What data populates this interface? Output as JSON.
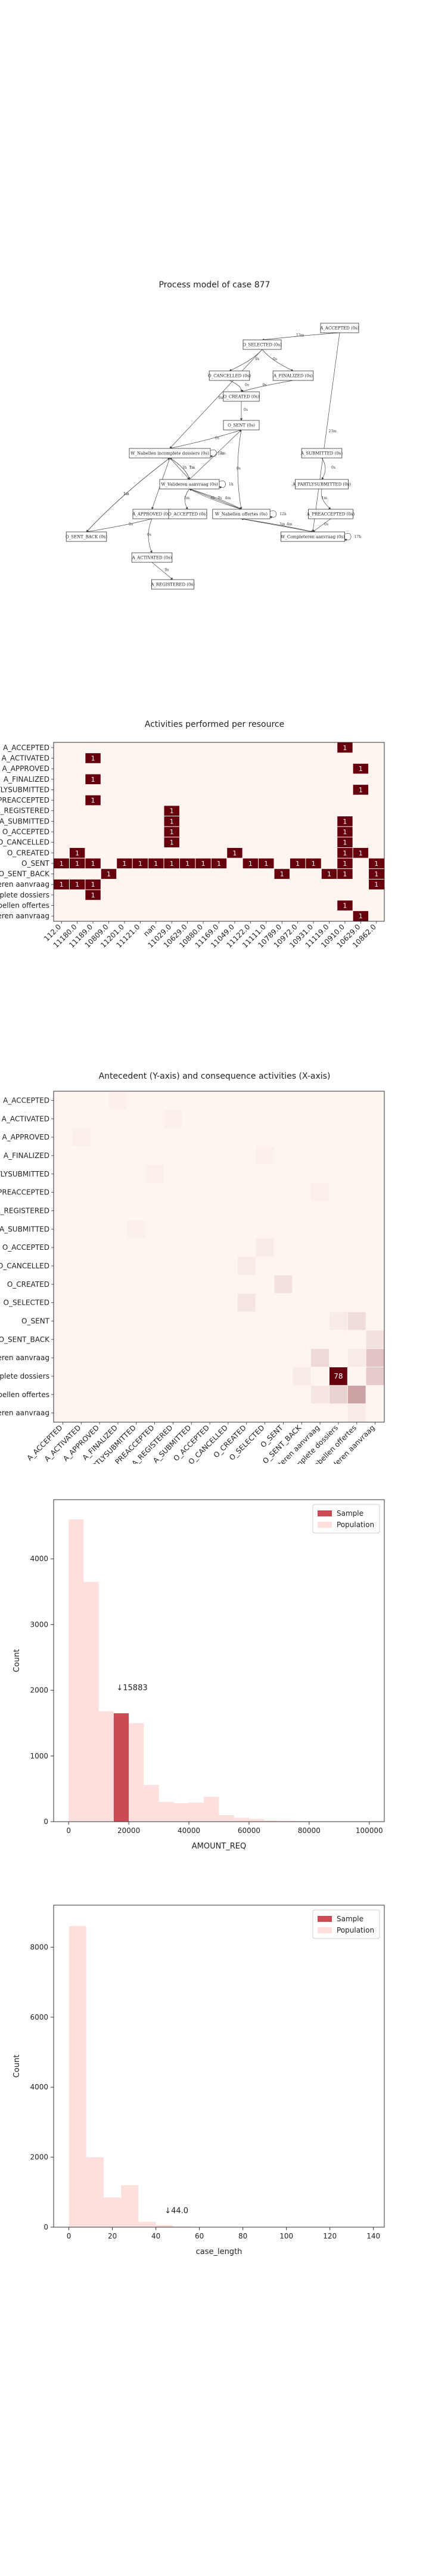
{
  "process_model": {
    "title": "Process model of case 877",
    "nodes": [
      {
        "id": "a_accepted",
        "label": "A_ACCEPTED (0s)"
      },
      {
        "id": "o_selected",
        "label": "O_SELECTED (0s)"
      },
      {
        "id": "o_cancelled",
        "label": "O_CANCELLED (0s)"
      },
      {
        "id": "a_finalized",
        "label": "A_FINALIZED (0s)"
      },
      {
        "id": "o_created",
        "label": "O_CREATED (0s)"
      },
      {
        "id": "o_sent",
        "label": "O_SENT (0s)"
      },
      {
        "id": "w_nabellen_inc",
        "label": "W_Nabellen incomplete dossiers (0s)"
      },
      {
        "id": "a_submitted",
        "label": "A_SUBMITTED (0s)"
      },
      {
        "id": "w_valideren",
        "label": "W_Valideren aanvraag (0s)"
      },
      {
        "id": "a_partlysubmitted",
        "label": "A_PARTLYSUBMITTED (0s)"
      },
      {
        "id": "a_approved",
        "label": "A_APPROVED (0s)"
      },
      {
        "id": "o_accepted",
        "label": "O_ACCEPTED (0s)"
      },
      {
        "id": "w_nabellen_off",
        "label": "W_Nabellen offertes (0s)"
      },
      {
        "id": "a_preaccepted",
        "label": "A_PREACCEPTED (0s)"
      },
      {
        "id": "o_sent_back",
        "label": "O_SENT_BACK (0s)"
      },
      {
        "id": "w_completeren",
        "label": "W_Completeren aanvraag (0s)"
      },
      {
        "id": "a_activated",
        "label": "A_ACTIVATED (0s)"
      },
      {
        "id": "a_registered",
        "label": "A_REGISTERED (0s)"
      }
    ],
    "edges": [
      {
        "from": "a_accepted",
        "to": "o_selected",
        "label": "13m"
      },
      {
        "from": "a_accepted",
        "to": "w_completeren",
        "label": "23m"
      },
      {
        "from": "o_selected",
        "to": "o_cancelled",
        "label": "0s"
      },
      {
        "from": "o_selected",
        "to": "a_finalized",
        "label": "0s"
      },
      {
        "from": "o_selected",
        "to": "w_nabellen_inc",
        "label": "9m"
      },
      {
        "from": "o_cancelled",
        "to": "o_created",
        "label": "0s"
      },
      {
        "from": "a_finalized",
        "to": "o_created",
        "label": "0s"
      },
      {
        "from": "o_created",
        "to": "o_sent",
        "label": "0s"
      },
      {
        "from": "o_sent",
        "to": "w_nabellen_inc",
        "label": "0s"
      },
      {
        "from": "o_sent",
        "to": "w_nabellen_off",
        "label": "0s"
      },
      {
        "from": "w_nabellen_inc",
        "to": "w_valideren",
        "label": "3h"
      },
      {
        "from": "w_nabellen_inc",
        "to": "w_valideren",
        "label": "7m"
      },
      {
        "from": "w_nabellen_inc",
        "to": "o_sent_back",
        "label": "1m"
      },
      {
        "from": "w_nabellen_inc",
        "to": "a_approved",
        "label": "0s"
      },
      {
        "from": "w_valideren",
        "to": "w_nabellen_off",
        "label": "4m"
      },
      {
        "from": "w_valideren",
        "to": "o_accepted",
        "label": "1m"
      },
      {
        "from": "w_valideren",
        "to": "w_nabellen_off",
        "label": "0s"
      },
      {
        "from": "a_submitted",
        "to": "a_partlysubmitted",
        "label": "0s"
      },
      {
        "from": "a_partlysubmitted",
        "to": "a_preaccepted",
        "label": "1m"
      },
      {
        "from": "a_preaccepted",
        "to": "w_completeren",
        "label": "0s"
      },
      {
        "from": "a_approved",
        "to": "o_sent_back",
        "label": "0s"
      },
      {
        "from": "a_approved",
        "to": "a_activated",
        "label": "0s"
      },
      {
        "from": "w_nabellen_off",
        "to": "w_completeren",
        "label": "3m"
      },
      {
        "from": "w_nabellen_off",
        "to": "w_nabellen_off",
        "label": "12h"
      },
      {
        "from": "w_nabellen_off",
        "to": "w_valideren",
        "label": "6h"
      },
      {
        "from": "w_completeren",
        "to": "w_completeren",
        "label": "17h"
      },
      {
        "from": "w_completeren",
        "to": "w_nabellen_off",
        "label": "4m"
      },
      {
        "from": "o_sent_back",
        "to": "w_nabellen_inc",
        "label": "1m"
      },
      {
        "from": "a_activated",
        "to": "a_registered",
        "label": "0s"
      },
      {
        "from": "w_nabellen_inc",
        "to": "w_nabellen_inc",
        "label": "7m"
      },
      {
        "from": "w_valideren",
        "to": "w_valideren",
        "label": "1h"
      },
      {
        "from": "w_valideren",
        "to": "o_sent",
        "label": "1m"
      },
      {
        "from": "w_valideren",
        "to": "w_nabellen_inc",
        "label": "1m"
      }
    ]
  },
  "chart_data": [
    {
      "type": "heatmap",
      "title": "Activities performed per resource",
      "rows": [
        "A_ACCEPTED",
        "A_ACTIVATED",
        "A_APPROVED",
        "A_FINALIZED",
        "A_PARTLYSUBMITTED",
        "A_PREACCEPTED",
        "A_REGISTERED",
        "A_SUBMITTED",
        "O_ACCEPTED",
        "O_CANCELLED",
        "O_CREATED",
        "O_SENT",
        "O_SENT_BACK",
        "W_Completeren aanvraag",
        "W_Nabellen incomplete dossiers",
        "W_Nabellen offertes",
        "W_Valideren aanvraag"
      ],
      "cols": [
        "112.0",
        "11180.0",
        "11189.0",
        "10809.0",
        "11201.0",
        "11121.0",
        "nan",
        "11029.0",
        "10629.0",
        "10880.0",
        "11169.0",
        "11049.0",
        "11122.0",
        "11111.0",
        "10789.0",
        "10972.0",
        "10931.0",
        "11119.0",
        "10910.0",
        "10629.0",
        "10862.0"
      ],
      "cells": [
        {
          "r": 0,
          "c": 18,
          "v": 1
        },
        {
          "r": 1,
          "c": 2,
          "v": 1
        },
        {
          "r": 2,
          "c": 19,
          "v": 1
        },
        {
          "r": 3,
          "c": 2,
          "v": 1
        },
        {
          "r": 4,
          "c": 19,
          "v": 1
        },
        {
          "r": 5,
          "c": 2,
          "v": 1
        },
        {
          "r": 6,
          "c": 7,
          "v": 1
        },
        {
          "r": 7,
          "c": 7,
          "v": 1
        },
        {
          "r": 7,
          "c": 18,
          "v": 1
        },
        {
          "r": 8,
          "c": 7,
          "v": 1
        },
        {
          "r": 8,
          "c": 18,
          "v": 1
        },
        {
          "r": 9,
          "c": 7,
          "v": 1
        },
        {
          "r": 9,
          "c": 18,
          "v": 1
        },
        {
          "r": 10,
          "c": 1,
          "v": 1
        },
        {
          "r": 10,
          "c": 11,
          "v": 1
        },
        {
          "r": 10,
          "c": 18,
          "v": 1
        },
        {
          "r": 10,
          "c": 19,
          "v": 1
        },
        {
          "r": 11,
          "c": 0,
          "v": 1
        },
        {
          "r": 11,
          "c": 1,
          "v": 1
        },
        {
          "r": 11,
          "c": 2,
          "v": 1
        },
        {
          "r": 11,
          "c": 4,
          "v": 1
        },
        {
          "r": 11,
          "c": 5,
          "v": 1
        },
        {
          "r": 11,
          "c": 6,
          "v": 1
        },
        {
          "r": 11,
          "c": 7,
          "v": 1
        },
        {
          "r": 11,
          "c": 8,
          "v": 1
        },
        {
          "r": 11,
          "c": 9,
          "v": 1
        },
        {
          "r": 11,
          "c": 10,
          "v": 1
        },
        {
          "r": 11,
          "c": 12,
          "v": 1
        },
        {
          "r": 11,
          "c": 13,
          "v": 1
        },
        {
          "r": 11,
          "c": 15,
          "v": 1
        },
        {
          "r": 11,
          "c": 16,
          "v": 1
        },
        {
          "r": 11,
          "c": 18,
          "v": 1
        },
        {
          "r": 11,
          "c": 20,
          "v": 1
        },
        {
          "r": 12,
          "c": 3,
          "v": 1
        },
        {
          "r": 12,
          "c": 14,
          "v": 1
        },
        {
          "r": 12,
          "c": 17,
          "v": 1
        },
        {
          "r": 12,
          "c": 18,
          "v": 1
        },
        {
          "r": 12,
          "c": 20,
          "v": 1
        },
        {
          "r": 13,
          "c": 0,
          "v": 1
        },
        {
          "r": 13,
          "c": 1,
          "v": 1
        },
        {
          "r": 13,
          "c": 2,
          "v": 1
        },
        {
          "r": 13,
          "c": 20,
          "v": 1
        },
        {
          "r": 14,
          "c": 2,
          "v": 1
        },
        {
          "r": 15,
          "c": 18,
          "v": 1
        },
        {
          "r": 16,
          "c": 19,
          "v": 1
        }
      ],
      "color_low": "#fff5f0",
      "color_high": "#67000d"
    },
    {
      "type": "heatmap",
      "title": "Antecedent (Y-axis) and consequence activities (X-axis)",
      "rows": [
        "A_ACCEPTED",
        "A_ACTIVATED",
        "A_APPROVED",
        "A_FINALIZED",
        "A_PARTLYSUBMITTED",
        "A_PREACCEPTED",
        "A_REGISTERED",
        "A_SUBMITTED",
        "O_ACCEPTED",
        "O_CANCELLED",
        "O_CREATED",
        "O_SELECTED",
        "O_SENT",
        "O_SENT_BACK",
        "W_Completeren aanvraag",
        "W_Nabellen incomplete dossiers",
        "W_Nabellen offertes",
        "W_Valideren aanvraag"
      ],
      "cols": [
        "A_ACCEPTED",
        "A_ACTIVATED",
        "A_APPROVED",
        "A_FINALIZED",
        "A_PARTLYSUBMITTED",
        "A_PREACCEPTED",
        "A_REGISTERED",
        "A_SUBMITTED",
        "O_ACCEPTED",
        "O_CANCELLED",
        "O_CREATED",
        "O_SELECTED",
        "O_SENT",
        "O_SENT_BACK",
        "W_Completeren aanvraag",
        "W_Nabellen incomplete dossiers",
        "W_Nabellen offertes",
        "W_Valideren aanvraag"
      ],
      "cells": [
        {
          "r": 15,
          "c": 15,
          "v": 78,
          "label": "78"
        },
        {
          "r": 16,
          "c": 16,
          "v": 22
        },
        {
          "r": 14,
          "c": 17,
          "v": 12
        },
        {
          "r": 15,
          "c": 17,
          "v": 10
        },
        {
          "r": 16,
          "c": 15,
          "v": 8
        },
        {
          "r": 14,
          "c": 14,
          "v": 6
        },
        {
          "r": 12,
          "c": 16,
          "v": 5
        },
        {
          "r": 13,
          "c": 17,
          "v": 4
        },
        {
          "r": 10,
          "c": 12,
          "v": 4
        },
        {
          "r": 11,
          "c": 10,
          "v": 3
        },
        {
          "r": 16,
          "c": 14,
          "v": 3
        },
        {
          "r": 15,
          "c": 13,
          "v": 2
        },
        {
          "r": 8,
          "c": 11,
          "v": 2
        },
        {
          "r": 9,
          "c": 10,
          "v": 2
        },
        {
          "r": 17,
          "c": 16,
          "v": 2
        },
        {
          "r": 12,
          "c": 15,
          "v": 2
        },
        {
          "r": 14,
          "c": 16,
          "v": 2
        },
        {
          "r": 5,
          "c": 14,
          "v": 1
        },
        {
          "r": 7,
          "c": 4,
          "v": 1
        },
        {
          "r": 4,
          "c": 5,
          "v": 1
        },
        {
          "r": 0,
          "c": 3,
          "v": 1
        },
        {
          "r": 3,
          "c": 11,
          "v": 1
        },
        {
          "r": 2,
          "c": 1,
          "v": 1
        },
        {
          "r": 1,
          "c": 6,
          "v": 1
        }
      ],
      "vmax": 78,
      "color_low": "#fff5f0",
      "color_high": "#67000d"
    },
    {
      "type": "bar",
      "title": "",
      "xlabel": "AMOUNT_REQ",
      "ylabel": "Count",
      "xlim": [
        -5000,
        105000
      ],
      "ylim": [
        0,
        4900
      ],
      "xticks": [
        0,
        20000,
        40000,
        60000,
        80000,
        100000
      ],
      "yticks": [
        0,
        1000,
        2000,
        3000,
        4000
      ],
      "legend": "top-right",
      "series": [
        {
          "name": "Population",
          "color": "#fde0dd",
          "bins": [
            [
              0,
              5000,
              4600
            ],
            [
              5000,
              10000,
              3650
            ],
            [
              10000,
              15000,
              1680
            ],
            [
              15000,
              20000,
              1650
            ],
            [
              20000,
              25000,
              1500
            ],
            [
              25000,
              30000,
              560
            ],
            [
              30000,
              35000,
              300
            ],
            [
              35000,
              40000,
              280
            ],
            [
              40000,
              45000,
              290
            ],
            [
              45000,
              50000,
              380
            ],
            [
              50000,
              55000,
              100
            ],
            [
              55000,
              60000,
              60
            ],
            [
              60000,
              65000,
              40
            ],
            [
              65000,
              70000,
              20
            ],
            [
              70000,
              75000,
              15
            ],
            [
              75000,
              80000,
              10
            ]
          ]
        },
        {
          "name": "Sample",
          "color": "#cb4b54",
          "bins": [
            [
              15000,
              20000,
              1650
            ]
          ]
        }
      ],
      "annotation": {
        "text": "↓15883",
        "x": 15883,
        "y": 2000
      }
    },
    {
      "type": "bar",
      "title": "",
      "xlabel": "case_length",
      "ylabel": "Count",
      "xlim": [
        -7,
        145
      ],
      "ylim": [
        0,
        9200
      ],
      "xticks": [
        0,
        20,
        40,
        60,
        80,
        100,
        120,
        140
      ],
      "yticks": [
        0,
        2000,
        4000,
        6000,
        8000
      ],
      "legend": "top-right",
      "series": [
        {
          "name": "Population",
          "color": "#fde0dd",
          "bins": [
            [
              0,
              8,
              8600
            ],
            [
              8,
              16,
              2000
            ],
            [
              16,
              24,
              850
            ],
            [
              24,
              32,
              1200
            ],
            [
              32,
              40,
              150
            ],
            [
              40,
              48,
              60
            ],
            [
              48,
              56,
              20
            ]
          ]
        },
        {
          "name": "Sample",
          "color": "#cb4b54",
          "bins": [
            [
              40,
              48,
              10
            ]
          ]
        }
      ],
      "annotation": {
        "text": "↓44.0",
        "x": 44,
        "y": 400
      }
    }
  ]
}
